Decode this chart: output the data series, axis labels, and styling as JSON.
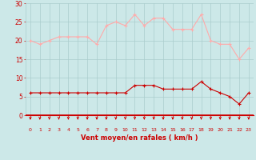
{
  "hours": [
    0,
    1,
    2,
    3,
    4,
    5,
    6,
    7,
    8,
    9,
    10,
    11,
    12,
    13,
    14,
    15,
    16,
    17,
    18,
    19,
    20,
    21,
    22,
    23
  ],
  "rafales": [
    20,
    19,
    20,
    21,
    21,
    21,
    21,
    19,
    24,
    25,
    24,
    27,
    24,
    26,
    26,
    23,
    23,
    23,
    27,
    20,
    19,
    19,
    15,
    18
  ],
  "moyen": [
    6,
    6,
    6,
    6,
    6,
    6,
    6,
    6,
    6,
    6,
    6,
    8,
    8,
    8,
    7,
    7,
    7,
    7,
    9,
    7,
    6,
    5,
    3,
    6
  ],
  "line_color_moyen": "#cc0000",
  "line_color_rafales": "#ffaaaa",
  "bg_color": "#cce8e8",
  "grid_color": "#aacccc",
  "arrow_color": "#cc0000",
  "xlabel": "Vent moyen/en rafales ( km/h )",
  "xlabel_color": "#cc0000",
  "tick_color": "#cc0000",
  "ylim": [
    0,
    30
  ],
  "yticks": [
    0,
    5,
    10,
    15,
    20,
    25,
    30
  ]
}
